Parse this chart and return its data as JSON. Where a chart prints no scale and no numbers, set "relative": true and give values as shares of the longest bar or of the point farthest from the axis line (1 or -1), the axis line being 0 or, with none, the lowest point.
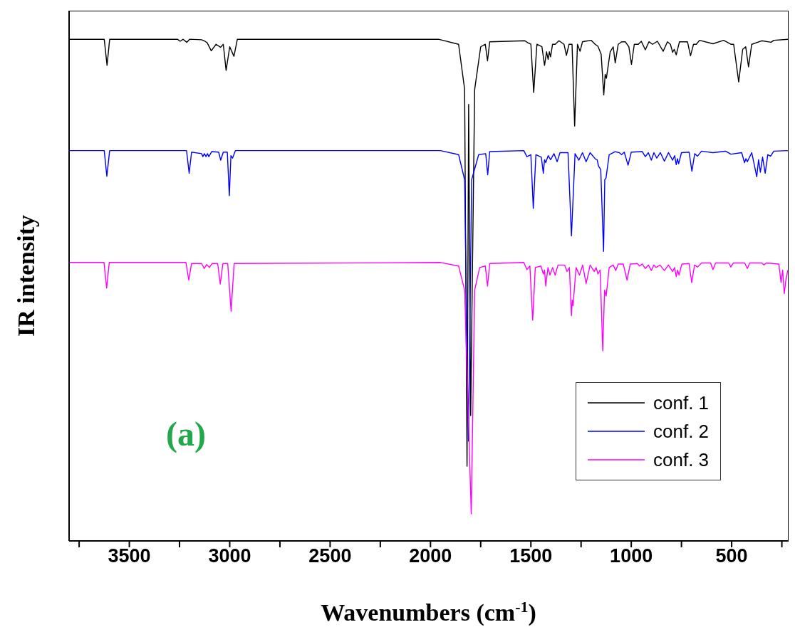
{
  "chart_data": {
    "type": "line",
    "relative": true,
    "xlabel": "Wavenumbers (cm$^{-1}$)",
    "ylabel": "IR intensity",
    "xlim": [
      3800,
      220
    ],
    "xticks": [
      {
        "value": 3750,
        "label": null
      },
      3500,
      {
        "value": 3250,
        "label": null
      },
      3000,
      {
        "value": 2750,
        "label": null
      },
      2500,
      {
        "value": 2250,
        "label": null
      },
      2000,
      {
        "value": 1750,
        "label": null
      },
      1500,
      {
        "value": 1250,
        "label": null
      },
      1000,
      {
        "value": 750,
        "label": null
      },
      500,
      {
        "value": 250,
        "label": null
      }
    ],
    "tick_labels": "x",
    "legend": "bottom right",
    "marker": "none",
    "line_style": "solid",
    "annotations": [
      "(a)"
    ],
    "series": [
      {
        "name": "conf. 1",
        "color": "#000000",
        "x": [
          3800,
          3625,
          3611,
          3598,
          3260,
          3247,
          3232,
          3214,
          3200,
          3140,
          3127,
          3112,
          3092,
          3068,
          3046,
          3032,
          3018,
          3000,
          2979,
          2962,
          1960,
          1860,
          1830,
          1818,
          1810,
          1800,
          1780,
          1750,
          1727,
          1716,
          1705,
          1530,
          1515,
          1500,
          1486,
          1470,
          1445,
          1432,
          1422,
          1414,
          1408,
          1402,
          1392,
          1379,
          1360,
          1335,
          1323,
          1310,
          1295,
          1282,
          1268,
          1255,
          1243,
          1231,
          1200,
          1180,
          1166,
          1150,
          1137,
          1130,
          1124,
          1105,
          1090,
          1080,
          1065,
          1048,
          1030,
          1012,
          999,
          985,
          965,
          950,
          930,
          912,
          894,
          870,
          841,
          820,
          805,
          794,
          786,
          776,
          760,
          720,
          705,
          690,
          676,
          660,
          593,
          540,
          504,
          490,
          465,
          445,
          430,
          416,
          400,
          350,
          304,
          290,
          220
        ],
        "values": [
          1,
          1,
          0.948,
          1,
          1,
          0.996,
          1,
          0.994,
          1,
          0.999,
          0.997,
          0.993,
          0.977,
          0.99,
          0.984,
          0.99,
          0.938,
          0.985,
          0.966,
          1,
          1,
          0.99,
          0.9,
          0.149,
          0.87,
          0.25,
          0.9,
          0.985,
          0.99,
          0.957,
          0.995,
          0.997,
          0.993,
          0.99,
          0.894,
          0.99,
          0.985,
          0.948,
          0.975,
          0.96,
          0.975,
          0.965,
          0.99,
          0.99,
          0.997,
          0.99,
          0.968,
          0.99,
          0.99,
          0.827,
          0.99,
          0.976,
          0.995,
          0.996,
          0.998,
          0.99,
          0.986,
          0.97,
          0.889,
          0.93,
          0.922,
          0.975,
          0.985,
          0.953,
          0.99,
          0.995,
          0.995,
          0.985,
          0.95,
          0.99,
          0.99,
          0.996,
          0.979,
          0.995,
          0.99,
          0.996,
          0.976,
          0.995,
          0.99,
          0.974,
          0.98,
          0.969,
          0.995,
          0.995,
          0.967,
          0.99,
          0.99,
          0.998,
          0.991,
          0.998,
          0.99,
          0.99,
          0.915,
          0.98,
          0.985,
          0.945,
          0.99,
          0.997,
          0.994,
          0.998,
          1
        ]
      },
      {
        "name": "conf. 2",
        "color": "#0000ff",
        "x": [
          3800,
          3625,
          3612,
          3598,
          3215,
          3202,
          3190,
          3140,
          3134,
          3126,
          3118,
          3111,
          3104,
          3090,
          3055,
          3045,
          3032,
          3012,
          3002,
          2994,
          2986,
          2972,
          1950,
          1860,
          1830,
          1811,
          1795,
          1760,
          1725,
          1715,
          1705,
          1535,
          1520,
          1500,
          1488,
          1475,
          1448,
          1438,
          1432,
          1426,
          1414,
          1402,
          1385,
          1369,
          1355,
          1315,
          1298,
          1280,
          1261,
          1243,
          1225,
          1205,
          1178,
          1170,
          1163,
          1152,
          1138,
          1132,
          1126,
          1110,
          1080,
          1060,
          1048,
          1035,
          1016,
          1000,
          945,
          930,
          915,
          900,
          887,
          873,
          855,
          835,
          815,
          794,
          784,
          776,
          770,
          764,
          750,
          712,
          698,
          684,
          670,
          650,
          593,
          530,
          504,
          450,
          436,
          429,
          422,
          400,
          375,
          366,
          357,
          346,
          333,
          320,
          306,
          290,
          220
        ],
        "values": [
          0.778,
          0.778,
          0.727,
          0.778,
          0.778,
          0.733,
          0.775,
          0.772,
          0.766,
          0.772,
          0.766,
          0.772,
          0.766,
          0.776,
          0.775,
          0.759,
          0.775,
          0.775,
          0.688,
          0.768,
          0.763,
          0.778,
          0.778,
          0.77,
          0.72,
          0.199,
          0.72,
          0.77,
          0.772,
          0.73,
          0.776,
          0.778,
          0.766,
          0.77,
          0.663,
          0.77,
          0.765,
          0.733,
          0.76,
          0.754,
          0.768,
          0.76,
          0.772,
          0.756,
          0.774,
          0.774,
          0.608,
          0.772,
          0.759,
          0.774,
          0.756,
          0.774,
          0.761,
          0.76,
          0.747,
          0.74,
          0.577,
          0.72,
          0.723,
          0.77,
          0.776,
          0.774,
          0.77,
          0.775,
          0.749,
          0.775,
          0.776,
          0.766,
          0.774,
          0.759,
          0.774,
          0.763,
          0.774,
          0.757,
          0.774,
          0.759,
          0.768,
          0.75,
          0.762,
          0.752,
          0.774,
          0.775,
          0.737,
          0.772,
          0.767,
          0.777,
          0.774,
          0.777,
          0.771,
          0.774,
          0.754,
          0.762,
          0.756,
          0.774,
          0.726,
          0.76,
          0.735,
          0.765,
          0.733,
          0.77,
          0.767,
          0.777,
          0.778
        ]
      },
      {
        "name": "conf. 3",
        "color": "#ff00ff",
        "x": [
          3800,
          3626,
          3613,
          3600,
          3218,
          3204,
          3190,
          3140,
          3127,
          3115,
          3101,
          3088,
          3060,
          3047,
          3034,
          3010,
          2993,
          2978,
          1950,
          1860,
          1830,
          1815,
          1797,
          1780,
          1755,
          1727,
          1716,
          1705,
          1535,
          1520,
          1505,
          1491,
          1478,
          1450,
          1438,
          1432,
          1426,
          1415,
          1405,
          1392,
          1379,
          1365,
          1332,
          1320,
          1308,
          1298,
          1294,
          1290,
          1275,
          1258,
          1242,
          1225,
          1205,
          1184,
          1175,
          1166,
          1155,
          1142,
          1133,
          1125,
          1110,
          1090,
          1077,
          1065,
          1040,
          1021,
          1005,
          970,
          959,
          945,
          930,
          915,
          900,
          887,
          877,
          857,
          835,
          815,
          794,
          784,
          776,
          769,
          762,
          748,
          712,
          699,
          685,
          670,
          650,
          605,
          593,
          580,
          515,
          504,
          492,
          435,
          422,
          410,
          350,
          339,
          328,
          265,
          254,
          246,
          238,
          230,
          220
        ],
        "values": [
          0.555,
          0.555,
          0.504,
          0.555,
          0.555,
          0.52,
          0.553,
          0.553,
          0.543,
          0.551,
          0.545,
          0.553,
          0.553,
          0.512,
          0.553,
          0.553,
          0.458,
          0.553,
          0.555,
          0.548,
          0.5,
          0.3,
          0.054,
          0.5,
          0.545,
          0.548,
          0.508,
          0.553,
          0.555,
          0.541,
          0.548,
          0.44,
          0.545,
          0.548,
          0.532,
          0.54,
          0.508,
          0.545,
          0.53,
          0.545,
          0.53,
          0.55,
          0.55,
          0.537,
          0.545,
          0.449,
          0.48,
          0.469,
          0.545,
          0.53,
          0.55,
          0.513,
          0.55,
          0.537,
          0.545,
          0.532,
          0.54,
          0.379,
          0.5,
          0.488,
          0.545,
          0.55,
          0.539,
          0.552,
          0.552,
          0.52,
          0.552,
          0.553,
          0.548,
          0.552,
          0.543,
          0.55,
          0.539,
          0.55,
          0.545,
          0.55,
          0.539,
          0.55,
          0.537,
          0.545,
          0.527,
          0.54,
          0.53,
          0.552,
          0.553,
          0.515,
          0.55,
          0.546,
          0.554,
          0.554,
          0.541,
          0.554,
          0.554,
          0.546,
          0.554,
          0.554,
          0.543,
          0.554,
          0.554,
          0.55,
          0.554,
          0.552,
          0.515,
          0.54,
          0.493,
          0.52,
          0.54
        ]
      }
    ]
  }
}
